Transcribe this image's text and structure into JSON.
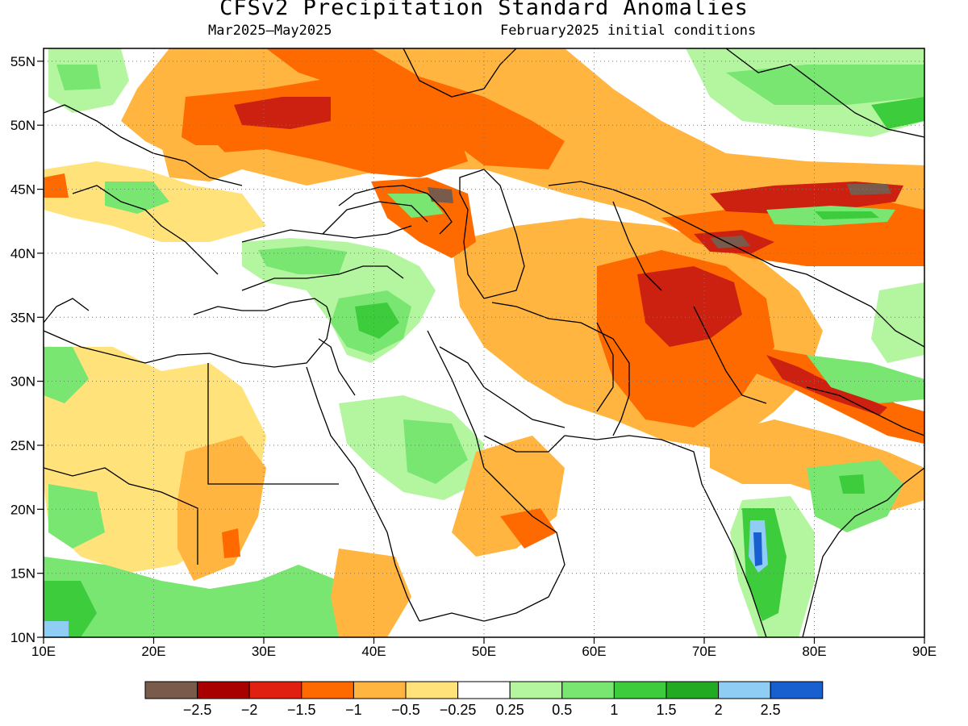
{
  "title": "CFSv2 Precipitation Standard Anomalies",
  "subtitle_left": "Mar2025–May2025",
  "subtitle_right": "February2025 initial conditions",
  "map": {
    "lon_range": [
      10,
      90
    ],
    "lat_range": [
      10,
      56
    ],
    "x_ticks": [
      "10E",
      "20E",
      "30E",
      "40E",
      "50E",
      "60E",
      "70E",
      "80E",
      "90E"
    ],
    "y_ticks": [
      "10N",
      "15N",
      "20N",
      "25N",
      "30N",
      "35N",
      "40N",
      "45N",
      "50N",
      "55N"
    ],
    "gridlines": "dotted"
  },
  "colorbar": {
    "colors": [
      "#7a5a4a",
      "#a80000",
      "#e02010",
      "#ff6a00",
      "#ffb540",
      "#ffe27a",
      "#ffffff",
      "#b4f5a0",
      "#78e670",
      "#3ccc3c",
      "#22aa22",
      "#8fcdf5",
      "#1860d0"
    ],
    "labels": [
      "−2.5",
      "−2",
      "−1.5",
      "−1",
      "−0.5",
      "−0.25",
      "0.25",
      "0.5",
      "1",
      "1.5",
      "2",
      "2.5"
    ]
  }
}
